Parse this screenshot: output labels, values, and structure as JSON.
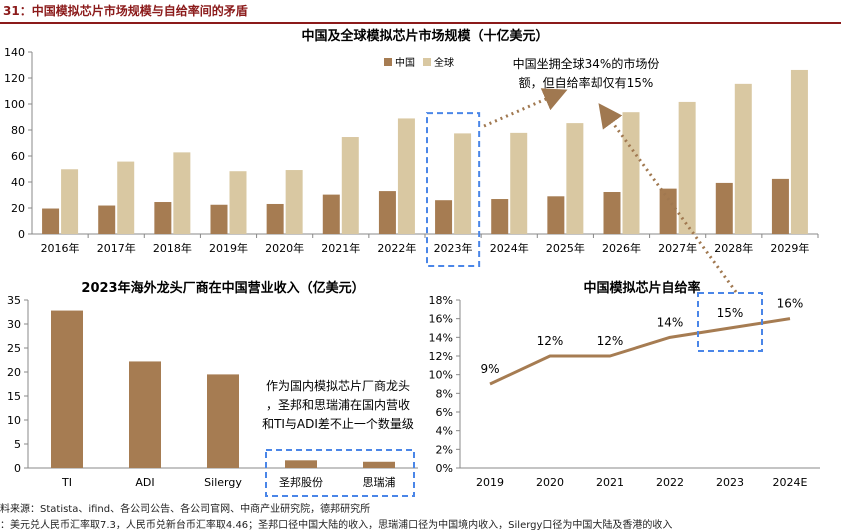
{
  "header": {
    "title": "31：中国模拟芯片市场规模与自给率间的矛盾"
  },
  "colors": {
    "china": "#A67C52",
    "global": "#D9C8A2",
    "line": "#A67C52",
    "highlight": "#4A86E8",
    "arrow": "#A07850",
    "header": "#8B1A1A"
  },
  "chart_data": [
    {
      "id": "market-size",
      "type": "bar",
      "title": "中国及全球模拟芯片市场规模（十亿美元）",
      "categories": [
        "2016年",
        "2017年",
        "2018年",
        "2019年",
        "2020年",
        "2021年",
        "2022年",
        "2023年",
        "2024年",
        "2025年",
        "2026年",
        "2027年",
        "2028年",
        "2029年"
      ],
      "series": [
        {
          "name": "中国",
          "values": [
            19.6,
            21.9,
            24.6,
            22.5,
            23.1,
            30.3,
            33.0,
            26.0,
            26.9,
            29.0,
            32.3,
            34.9,
            39.3,
            42.4
          ]
        },
        {
          "name": "全球",
          "values": [
            49.8,
            55.7,
            62.8,
            48.3,
            49.2,
            74.6,
            88.9,
            77.4,
            77.8,
            85.3,
            93.7,
            101.6,
            115.5,
            126.2
          ]
        }
      ],
      "ylim": [
        0,
        140
      ],
      "yticks": [
        0,
        20,
        40,
        60,
        80,
        100,
        120,
        140
      ],
      "grid": false,
      "legend": "top-center",
      "highlight_category": "2023年",
      "annotation": [
        "中国坐拥全球34%的市场份",
        "额，但自给率却仅有15%"
      ]
    },
    {
      "id": "overseas-revenue",
      "type": "bar",
      "title": "2023年海外龙头厂商在中国营业收入（亿美元）",
      "categories": [
        "TI",
        "ADI",
        "Silergy",
        "圣邦股份",
        "思瑞浦"
      ],
      "values": [
        32.8,
        22.2,
        19.5,
        1.6,
        1.3
      ],
      "ylim": [
        0,
        35
      ],
      "yticks": [
        0,
        5,
        10,
        15,
        20,
        25,
        30,
        35
      ],
      "grid": false,
      "highlight_categories": [
        "圣邦股份",
        "思瑞浦"
      ],
      "annotation": [
        "作为国内模拟芯片厂商龙头",
        "，圣邦和思瑞浦在国内营收",
        "和TI与ADI差不止一个数量级"
      ]
    },
    {
      "id": "self-sufficiency",
      "type": "line",
      "title": "中国模拟芯片自给率",
      "categories": [
        "2019",
        "2020",
        "2021",
        "2022",
        "2023",
        "2024E"
      ],
      "values": [
        9,
        12,
        12,
        14,
        15,
        16
      ],
      "data_labels": [
        "9%",
        "12%",
        "12%",
        "14%",
        "15%",
        "16%"
      ],
      "ylim": [
        0,
        18
      ],
      "yticks": [
        0,
        2,
        4,
        6,
        8,
        10,
        12,
        14,
        16,
        18
      ],
      "ytick_labels": [
        "0%",
        "2%",
        "4%",
        "6%",
        "8%",
        "10%",
        "12%",
        "14%",
        "16%",
        "18%"
      ],
      "grid": false,
      "highlight_category": "2023"
    }
  ],
  "footer": {
    "source": "料来源：Statista、ifind、各公司公告、各公司官网、中商产业研究院，德邦研究所",
    "note": "：美元兑人民币汇率取7.3，人民币兑新台币汇率取4.46；圣邦口径中国大陆的收入，思瑞浦口径为中国境内收入，Silergy口径为中国大陆及香港的收入"
  }
}
